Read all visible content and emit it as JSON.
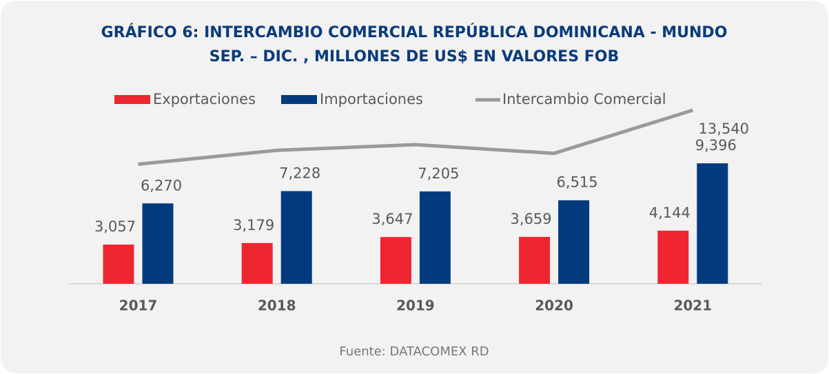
{
  "chart_data": {
    "type": "bar_line",
    "title": "GRÁFICO 6: INTERCAMBIO COMERCIAL REPÚBLICA DOMINICANA - MUNDO",
    "subtitle": "SEP. – DIC. , MILLONES DE US$ EN VALORES FOB",
    "source": "Fuente: DATACOMEX RD",
    "categories": [
      "2017",
      "2018",
      "2019",
      "2020",
      "2021"
    ],
    "series": [
      {
        "name": "Exportaciones",
        "kind": "bar",
        "color": "#ee2631",
        "values": [
          3057,
          3179,
          3647,
          3659,
          4144
        ],
        "value_labels": [
          "3,057",
          "3,179",
          "3,647",
          "3,659",
          "4,144"
        ]
      },
      {
        "name": "Importaciones",
        "kind": "bar",
        "color": "#023b7d",
        "values": [
          6270,
          7228,
          7205,
          6515,
          9396
        ],
        "value_labels": [
          "6,270",
          "7,228",
          "7,205",
          "6,515",
          "9,396"
        ]
      },
      {
        "name": "Intercambio Comercial",
        "kind": "line",
        "color": "#9a9a9a",
        "values": [
          9327,
          10407,
          10852,
          10174,
          13540
        ],
        "value_labels": [
          null,
          null,
          null,
          null,
          "13,540"
        ]
      }
    ]
  }
}
